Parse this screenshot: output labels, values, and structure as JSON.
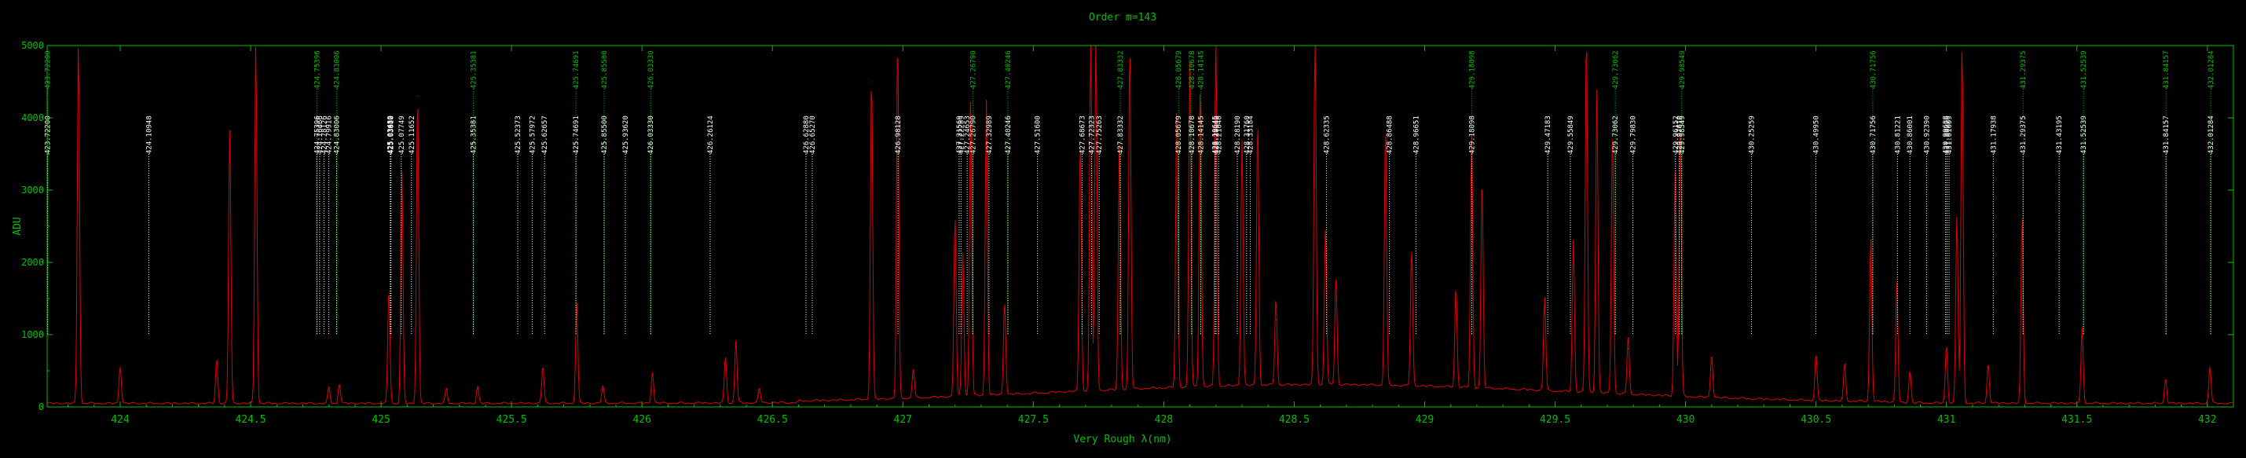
{
  "chart_data": {
    "type": "line",
    "title": "Order m=143",
    "xlabel": "Very Rough λ(nm)",
    "ylabel": "ADU",
    "xlim": [
      423.72,
      432.1
    ],
    "ylim": [
      0,
      5000
    ],
    "x_ticks": [
      {
        "v": 424,
        "label": "424"
      },
      {
        "v": 424.5,
        "label": "424.5"
      },
      {
        "v": 425,
        "label": "425"
      },
      {
        "v": 425.5,
        "label": "425.5"
      },
      {
        "v": 426,
        "label": "426"
      },
      {
        "v": 426.5,
        "label": "426.5"
      },
      {
        "v": 427,
        "label": "427"
      },
      {
        "v": 427.5,
        "label": "427.5"
      },
      {
        "v": 428,
        "label": "428"
      },
      {
        "v": 428.5,
        "label": "428.5"
      },
      {
        "v": 429,
        "label": "429"
      },
      {
        "v": 429.5,
        "label": "429.5"
      },
      {
        "v": 430,
        "label": "430"
      },
      {
        "v": 430.5,
        "label": "430.5"
      },
      {
        "v": 431,
        "label": "431"
      },
      {
        "v": 431.5,
        "label": "431.5"
      },
      {
        "v": 432,
        "label": "432"
      }
    ],
    "y_ticks": [
      {
        "v": 0,
        "label": "0"
      },
      {
        "v": 1000,
        "label": "1000"
      },
      {
        "v": 2000,
        "label": "2000"
      },
      {
        "v": 3000,
        "label": "3000"
      },
      {
        "v": 4000,
        "label": "4000"
      },
      {
        "v": 5000,
        "label": "5000"
      }
    ],
    "grid": false,
    "colors": {
      "spectrum": "#e00000",
      "axes": "#00c000",
      "reference_lines": "#ffffff",
      "identified_lines": "#00c000"
    },
    "background_level": 40,
    "spectrum_peaks": [
      {
        "x": 423.84,
        "y": 5000
      },
      {
        "x": 424.0,
        "y": 520
      },
      {
        "x": 424.37,
        "y": 620
      },
      {
        "x": 424.42,
        "y": 3820
      },
      {
        "x": 424.52,
        "y": 5000
      },
      {
        "x": 424.8,
        "y": 220
      },
      {
        "x": 424.84,
        "y": 280
      },
      {
        "x": 425.03,
        "y": 1580
      },
      {
        "x": 425.08,
        "y": 3200
      },
      {
        "x": 425.14,
        "y": 4300
      },
      {
        "x": 425.25,
        "y": 200
      },
      {
        "x": 425.37,
        "y": 240
      },
      {
        "x": 425.62,
        "y": 520
      },
      {
        "x": 425.75,
        "y": 1400
      },
      {
        "x": 425.85,
        "y": 240
      },
      {
        "x": 426.04,
        "y": 440
      },
      {
        "x": 426.32,
        "y": 650
      },
      {
        "x": 426.36,
        "y": 870
      },
      {
        "x": 426.45,
        "y": 200
      },
      {
        "x": 426.88,
        "y": 4500
      },
      {
        "x": 426.98,
        "y": 5000
      },
      {
        "x": 427.04,
        "y": 400
      },
      {
        "x": 427.2,
        "y": 2500
      },
      {
        "x": 427.23,
        "y": 2000
      },
      {
        "x": 427.26,
        "y": 4200
      },
      {
        "x": 427.32,
        "y": 4100
      },
      {
        "x": 427.39,
        "y": 1300
      },
      {
        "x": 427.68,
        "y": 3500
      },
      {
        "x": 427.72,
        "y": 5000
      },
      {
        "x": 427.74,
        "y": 4900
      },
      {
        "x": 427.83,
        "y": 3400
      },
      {
        "x": 427.87,
        "y": 4800
      },
      {
        "x": 428.05,
        "y": 4000
      },
      {
        "x": 428.1,
        "y": 4500
      },
      {
        "x": 428.14,
        "y": 4200
      },
      {
        "x": 428.2,
        "y": 5000
      },
      {
        "x": 428.3,
        "y": 3400
      },
      {
        "x": 428.36,
        "y": 3700
      },
      {
        "x": 428.43,
        "y": 1200
      },
      {
        "x": 428.58,
        "y": 5000
      },
      {
        "x": 428.62,
        "y": 2200
      },
      {
        "x": 428.66,
        "y": 1500
      },
      {
        "x": 428.85,
        "y": 3600
      },
      {
        "x": 428.95,
        "y": 1900
      },
      {
        "x": 429.12,
        "y": 1400
      },
      {
        "x": 429.18,
        "y": 3500
      },
      {
        "x": 429.22,
        "y": 2900
      },
      {
        "x": 429.46,
        "y": 1300
      },
      {
        "x": 429.57,
        "y": 2100
      },
      {
        "x": 429.62,
        "y": 5000
      },
      {
        "x": 429.66,
        "y": 4200
      },
      {
        "x": 429.72,
        "y": 3700
      },
      {
        "x": 429.78,
        "y": 800
      },
      {
        "x": 429.96,
        "y": 3100
      },
      {
        "x": 429.98,
        "y": 3700
      },
      {
        "x": 430.1,
        "y": 600
      },
      {
        "x": 430.5,
        "y": 650
      },
      {
        "x": 430.61,
        "y": 520
      },
      {
        "x": 430.71,
        "y": 2300
      },
      {
        "x": 430.81,
        "y": 1700
      },
      {
        "x": 430.86,
        "y": 450
      },
      {
        "x": 431.0,
        "y": 800
      },
      {
        "x": 431.04,
        "y": 2600
      },
      {
        "x": 431.06,
        "y": 5000
      },
      {
        "x": 431.16,
        "y": 550
      },
      {
        "x": 431.29,
        "y": 2600
      },
      {
        "x": 431.52,
        "y": 1050
      },
      {
        "x": 431.84,
        "y": 350
      },
      {
        "x": 432.01,
        "y": 520
      }
    ],
    "reference_lines": [
      {
        "x": 423.722,
        "label": "423.72200"
      },
      {
        "x": 424.10948,
        "label": "424.10948"
      },
      {
        "x": 424.75396,
        "label": "424.75396"
      },
      {
        "x": 424.76466,
        "label": "424.76466"
      },
      {
        "x": 424.78126,
        "label": "424.78126"
      },
      {
        "x": 424.79916,
        "label": "424.79916"
      },
      {
        "x": 424.83006,
        "label": "424.83006"
      },
      {
        "x": 425.0348,
        "label": "425.03480"
      },
      {
        "x": 425.03632,
        "label": "425.03632"
      },
      {
        "x": 425.0381,
        "label": "425.03810"
      },
      {
        "x": 425.07749,
        "label": "425.07749"
      },
      {
        "x": 425.11652,
        "label": "425.11652"
      },
      {
        "x": 425.35381,
        "label": "425.35381"
      },
      {
        "x": 425.52373,
        "label": "425.52373"
      },
      {
        "x": 425.57972,
        "label": "425.57972"
      },
      {
        "x": 425.62657,
        "label": "425.62657"
      },
      {
        "x": 425.74691,
        "label": "425.74691"
      },
      {
        "x": 425.855,
        "label": "425.85500"
      },
      {
        "x": 425.9362,
        "label": "425.93620"
      },
      {
        "x": 426.0333,
        "label": "426.03330"
      },
      {
        "x": 426.26124,
        "label": "426.26124"
      },
      {
        "x": 426.6288,
        "label": "426.62880"
      },
      {
        "x": 426.6527,
        "label": "426.65270"
      },
      {
        "x": 426.98128,
        "label": "426.98128"
      },
      {
        "x": 427.21569,
        "label": "427.21569"
      },
      {
        "x": 427.22289,
        "label": "427.22289"
      },
      {
        "x": 427.24653,
        "label": "427.24653"
      },
      {
        "x": 427.2679,
        "label": "427.26790"
      },
      {
        "x": 427.32989,
        "label": "427.32989"
      },
      {
        "x": 427.40246,
        "label": "427.40246"
      },
      {
        "x": 427.516,
        "label": "427.51600"
      },
      {
        "x": 427.68673,
        "label": "427.68673"
      },
      {
        "x": 427.72323,
        "label": "427.72323"
      },
      {
        "x": 427.75263,
        "label": "427.75263"
      },
      {
        "x": 427.83332,
        "label": "427.83332"
      },
      {
        "x": 428.05679,
        "label": "428.05679"
      },
      {
        "x": 428.10678,
        "label": "428.10678"
      },
      {
        "x": 428.14145,
        "label": "428.14145"
      },
      {
        "x": 428.19645,
        "label": "428.19645"
      },
      {
        "x": 428.2004,
        "label": "428.20040"
      },
      {
        "x": 428.2104,
        "label": "428.21040"
      },
      {
        "x": 428.2819,
        "label": "428.28190"
      },
      {
        "x": 428.3176,
        "label": "428.31760"
      },
      {
        "x": 428.33184,
        "label": "428.33184"
      },
      {
        "x": 428.62335,
        "label": "428.62335"
      },
      {
        "x": 428.86488,
        "label": "428.86488"
      },
      {
        "x": 428.96651,
        "label": "428.96651"
      },
      {
        "x": 429.18098,
        "label": "429.18098"
      },
      {
        "x": 429.47183,
        "label": "429.47183"
      },
      {
        "x": 429.55849,
        "label": "429.55849"
      },
      {
        "x": 429.73062,
        "label": "429.73062"
      },
      {
        "x": 429.7983,
        "label": "429.79830"
      },
      {
        "x": 429.96152,
        "label": "429.96152"
      },
      {
        "x": 429.9761,
        "label": "429.97610"
      },
      {
        "x": 429.98549,
        "label": "429.98549"
      },
      {
        "x": 430.25259,
        "label": "430.25259"
      },
      {
        "x": 430.4995,
        "label": "430.49950"
      },
      {
        "x": 430.71756,
        "label": "430.71756"
      },
      {
        "x": 430.81221,
        "label": "430.81221"
      },
      {
        "x": 430.86001,
        "label": "430.86001"
      },
      {
        "x": 430.9239,
        "label": "430.92390"
      },
      {
        "x": 430.99688,
        "label": "430.99688"
      },
      {
        "x": 431.00229,
        "label": "431.00229"
      },
      {
        "x": 431.01009,
        "label": "431.01009"
      },
      {
        "x": 431.17938,
        "label": "431.17938"
      },
      {
        "x": 431.29375,
        "label": "431.29375"
      },
      {
        "x": 431.43195,
        "label": "431.43195"
      },
      {
        "x": 431.52539,
        "label": "431.52539"
      },
      {
        "x": 431.84157,
        "label": "431.84157"
      },
      {
        "x": 432.01284,
        "label": "432.01284"
      }
    ],
    "identified_lines": [
      {
        "x": 423.722,
        "label": "423.72200"
      },
      {
        "x": 424.75396,
        "label": "424.75396"
      },
      {
        "x": 424.83006,
        "label": "424.83006"
      },
      {
        "x": 425.35381,
        "label": "425.35381"
      },
      {
        "x": 425.74691,
        "label": "425.74691"
      },
      {
        "x": 425.855,
        "label": "425.85500"
      },
      {
        "x": 426.0333,
        "label": "426.03330"
      },
      {
        "x": 427.2679,
        "label": "427.26790"
      },
      {
        "x": 427.40246,
        "label": "427.40246"
      },
      {
        "x": 427.83332,
        "label": "427.83332"
      },
      {
        "x": 428.05679,
        "label": "428.05679"
      },
      {
        "x": 428.10678,
        "label": "428.10678"
      },
      {
        "x": 428.14145,
        "label": "428.14145"
      },
      {
        "x": 429.18098,
        "label": "429.18098"
      },
      {
        "x": 429.73062,
        "label": "429.73062"
      },
      {
        "x": 429.98549,
        "label": "429.98549"
      },
      {
        "x": 430.71756,
        "label": "430.71756"
      },
      {
        "x": 431.29375,
        "label": "431.29375"
      },
      {
        "x": 431.52539,
        "label": "431.52539"
      },
      {
        "x": 431.84157,
        "label": "431.84157"
      },
      {
        "x": 432.01284,
        "label": "432.01284"
      }
    ]
  }
}
